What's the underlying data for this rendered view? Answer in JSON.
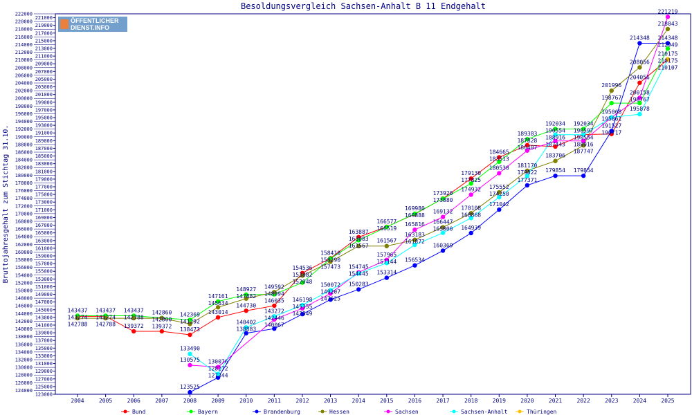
{
  "chart_data": {
    "type": "line",
    "title": "Besoldungsvergleich Sachsen-Anhalt B 11 Endgehalt",
    "xlabel": "",
    "ylabel": "Bruttojahresgehalt zum Stichtag 31.10.",
    "ylim": [
      123000,
      222000
    ],
    "ytick_step": 1000,
    "grid": false,
    "legend_placement": "bottom",
    "x": [
      2004,
      2005,
      2006,
      2007,
      2008,
      2009,
      2010,
      2011,
      2012,
      2013,
      2014,
      2015,
      2016,
      2017,
      2018,
      2019,
      2020,
      2021,
      2022,
      2023,
      2024,
      2025
    ],
    "series": [
      {
        "name": "Bund",
        "color": "#ff0000",
        "values": [
          143274,
          143274,
          139372,
          139372,
          138473,
          143014,
          144730,
          146035,
          154536,
          158410,
          163887,
          166577,
          169888,
          173920,
          179130,
          184665,
          187828,
          187443,
          190597,
          190717,
          204056,
          210107
        ]
      },
      {
        "name": "Bayern",
        "color": "#00ff00",
        "values": [
          143437,
          143437,
          143437,
          142860,
          142369,
          147161,
          148927,
          148994,
          152048,
          158290,
          163083,
          166519,
          169980,
          173880,
          177825,
          183513,
          189383,
          192034,
          192034,
          198767,
          198767,
          212949
        ]
      },
      {
        "name": "Brandenburg",
        "color": "#0000ff",
        "values": [
          null,
          null,
          null,
          null,
          123525,
          127344,
          138883,
          140067,
          143849,
          147625,
          150283,
          153314,
          156534,
          160369,
          164939,
          171042,
          177371,
          179854,
          179854,
          191527,
          214348,
          214348
        ]
      },
      {
        "name": "Hessen",
        "color": "#808000",
        "values": [
          142788,
          142788,
          142788,
          142800,
          141292,
          145634,
          147882,
          149592,
          153882,
          157473,
          161567,
          161567,
          163183,
          166447,
          170108,
          175552,
          181170,
          183706,
          187747,
          201996,
          208056,
          218043
        ]
      },
      {
        "name": "Sachsen",
        "color": "#ff00ff",
        "values": [
          null,
          null,
          null,
          null,
          130575,
          130076,
          null,
          142446,
          145355,
          149207,
          154745,
          157965,
          165816,
          169132,
          174932,
          180530,
          186407,
          188916,
          188916,
          195068,
          200158,
          221219
        ]
      },
      {
        "name": "Sachsen-Anhalt",
        "color": "#00ffff",
        "values": [
          null,
          null,
          null,
          null,
          133490,
          128272,
          140402,
          143272,
          146198,
          150072,
          154445,
          157144,
          161872,
          165000,
          168868,
          174250,
          179822,
          190554,
          190554,
          195061,
          195878,
          210175
        ]
      },
      {
        "name": "Thüringen",
        "color": "#ffc000",
        "values": [
          null,
          null,
          null,
          null,
          null,
          null,
          null,
          null,
          null,
          null,
          null,
          null,
          null,
          null,
          null,
          null,
          null,
          null,
          null,
          null,
          null,
          210175
        ]
      }
    ]
  },
  "logo": {
    "line1": "ÖFFENTLICHER",
    "line2": "DIENST.INFO"
  },
  "colors": {
    "axis": "#000080",
    "label": "#000080"
  }
}
